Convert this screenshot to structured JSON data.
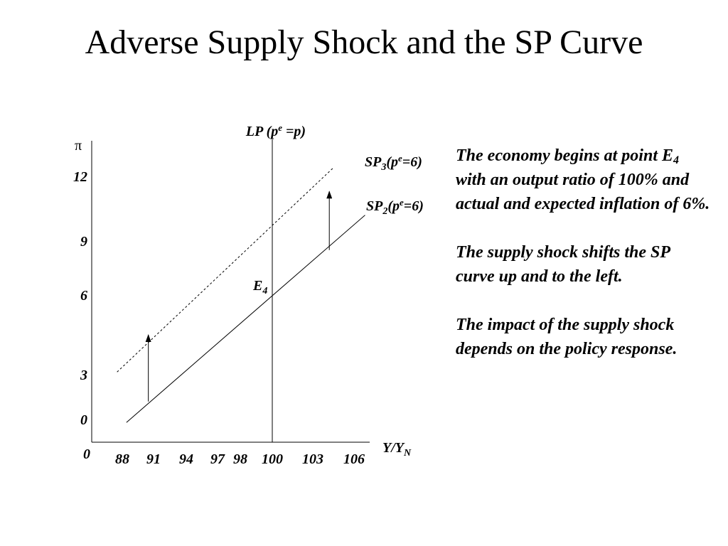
{
  "slide": {
    "title": "Adverse Supply Shock and the SP Curve",
    "paragraphs": [
      [
        {
          "text": "The economy begins at point E"
        },
        {
          "text": "4",
          "sub": true
        },
        {
          "text": " with an output ratio of 100% and actual and expected inflation of 6%."
        }
      ],
      [
        {
          "text": "The supply shock shifts the SP curve up and to the left."
        }
      ],
      [
        {
          "text": "The impact of the supply shock depends on the policy response."
        }
      ]
    ]
  },
  "chart_data": {
    "type": "line",
    "x_ticks": [
      "88",
      "91",
      "94",
      "97",
      "98",
      "100",
      "103",
      "106"
    ],
    "x_origin_label": "0",
    "y_ticks": [
      "0",
      "3",
      "6",
      "9",
      "12"
    ],
    "y_label": "π",
    "x_label": {
      "main": "Y/Y",
      "sub": "N"
    },
    "lp": {
      "x": 100,
      "label": [
        {
          "t": "LP (p"
        },
        {
          "t": "e",
          "sup": true
        },
        {
          "t": " =p)"
        }
      ]
    },
    "series": [
      {
        "style": "solid",
        "points": [
          [
            88.4,
            -0.2
          ],
          [
            106.8,
            10.2
          ]
        ],
        "label": [
          {
            "t": "SP"
          },
          {
            "t": "2",
            "sub": true
          },
          {
            "t": "(p"
          },
          {
            "t": "e",
            "sup": true
          },
          {
            "t": "=6)"
          }
        ]
      },
      {
        "style": "dashed",
        "points": [
          [
            87.5,
            3.1
          ],
          [
            104.5,
            12.4
          ]
        ],
        "label": [
          {
            "t": "SP"
          },
          {
            "t": "3",
            "sub": true
          },
          {
            "t": "(p"
          },
          {
            "t": "e",
            "sup": true
          },
          {
            "t": "=6)"
          }
        ]
      }
    ],
    "point_label": {
      "x": 100,
      "y": 6,
      "text": [
        {
          "t": "E"
        },
        {
          "t": "4",
          "sub": true
        }
      ]
    },
    "arrows": [
      {
        "x": 90.5,
        "y_from": 1.2,
        "y_to": 4.5
      },
      {
        "x": 104.2,
        "y_from": 8.5,
        "y_to": 11.3
      }
    ],
    "grid": false
  }
}
